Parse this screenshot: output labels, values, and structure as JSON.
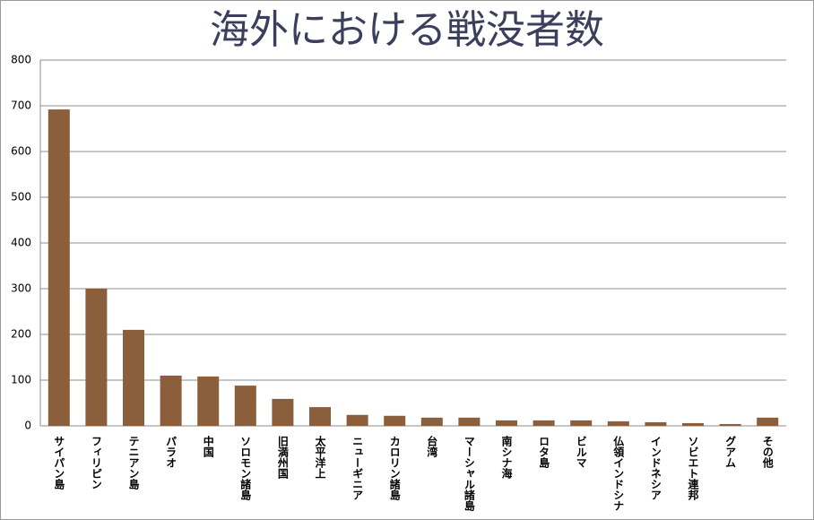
{
  "chart_data": {
    "type": "bar",
    "title": "海外における戦没者数",
    "categories": [
      "サイパン島",
      "フィリピン",
      "テニアン島",
      "パラオ",
      "中国",
      "ソロモン諸島",
      "旧満州国",
      "太平洋上",
      "ニューギニア",
      "カロリン諸島",
      "台湾",
      "マーシャル諸島",
      "南シナ海",
      "ロタ島",
      "ビルマ",
      "仏領インドシナ",
      "インドネシア",
      "ソビエト連邦",
      "グアム",
      "その他"
    ],
    "values": [
      692,
      300,
      210,
      110,
      108,
      88,
      59,
      41,
      24,
      22,
      18,
      18,
      12,
      12,
      12,
      10,
      8,
      6,
      4,
      18
    ],
    "color": "#8b5e3c",
    "ylim": [
      0,
      800
    ],
    "yticks": [
      0,
      100,
      200,
      300,
      400,
      500,
      600,
      700,
      800
    ],
    "grid": true
  }
}
